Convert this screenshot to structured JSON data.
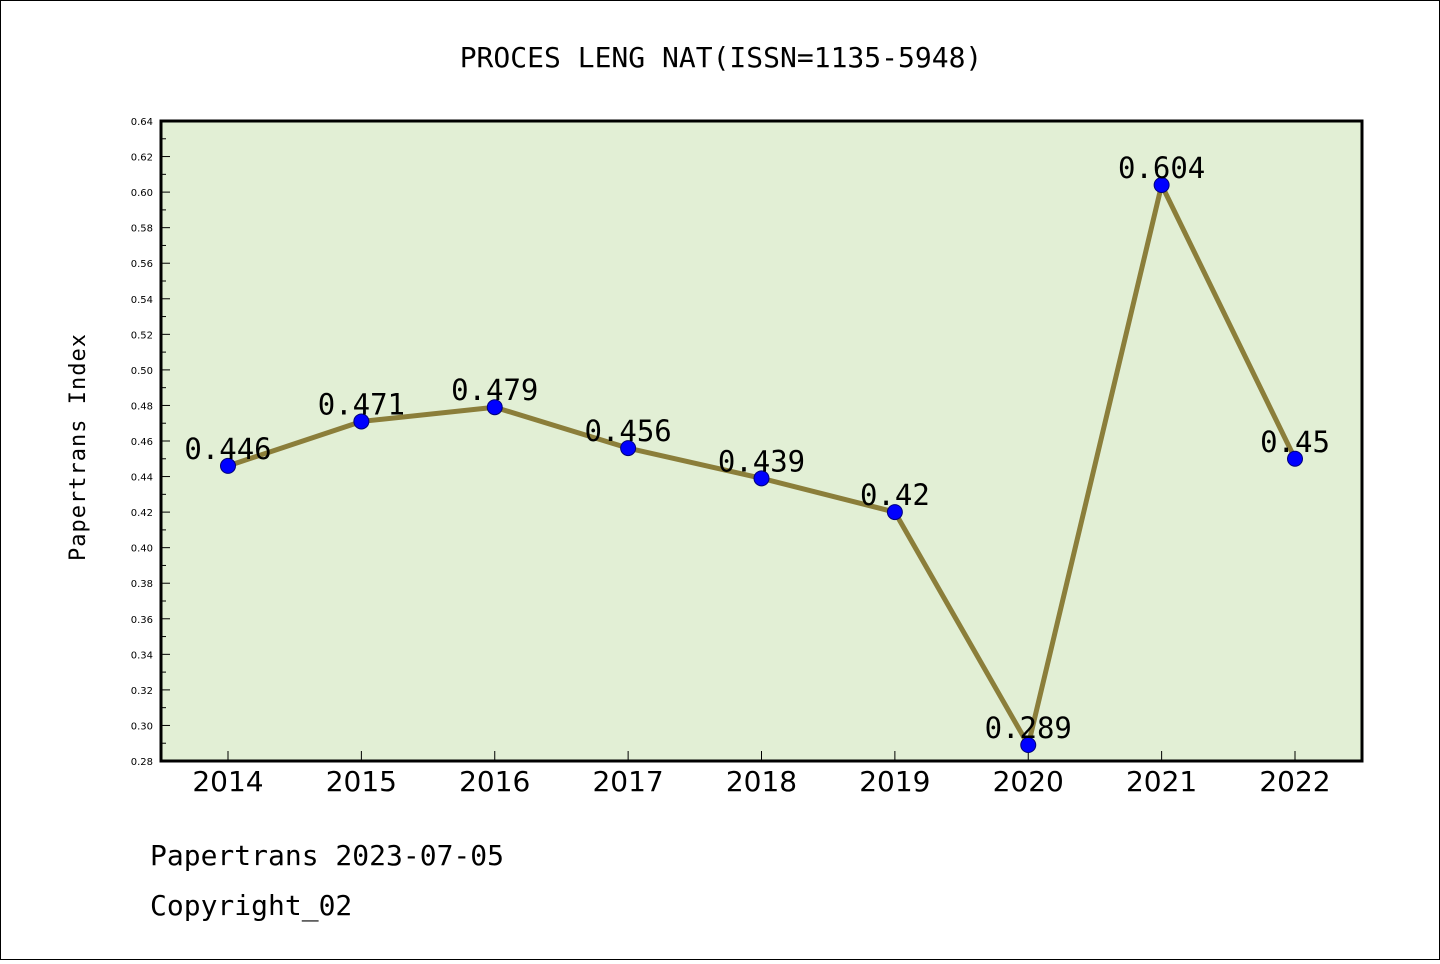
{
  "chart_data": {
    "type": "line",
    "title": "PROCES LENG NAT(ISSN=1135-5948)",
    "ylabel": "Papertrans Index",
    "xlabel": "",
    "categories": [
      "2014",
      "2015",
      "2016",
      "2017",
      "2018",
      "2019",
      "2020",
      "2021",
      "2022"
    ],
    "values": [
      0.446,
      0.471,
      0.479,
      0.456,
      0.439,
      0.42,
      0.289,
      0.604,
      0.45
    ],
    "data_labels": [
      "0.446",
      "0.471",
      "0.479",
      "0.456",
      "0.439",
      "0.42",
      "0.289",
      "0.604",
      "0.45"
    ],
    "ylim": [
      0.28,
      0.64
    ],
    "yticks": [
      "0.28",
      "0.30",
      "0.32",
      "0.34",
      "0.36",
      "0.38",
      "0.40",
      "0.42",
      "0.44",
      "0.46",
      "0.48",
      "0.50",
      "0.52",
      "0.54",
      "0.56",
      "0.58",
      "0.60",
      "0.62",
      "0.64"
    ],
    "grid": false,
    "colors": {
      "line": "#8b7e3a",
      "marker": "#0000ff",
      "plot_background": "#e2efd5"
    }
  },
  "footer": {
    "line1": "Papertrans 2023-07-05",
    "line2": "Copyright_02"
  }
}
